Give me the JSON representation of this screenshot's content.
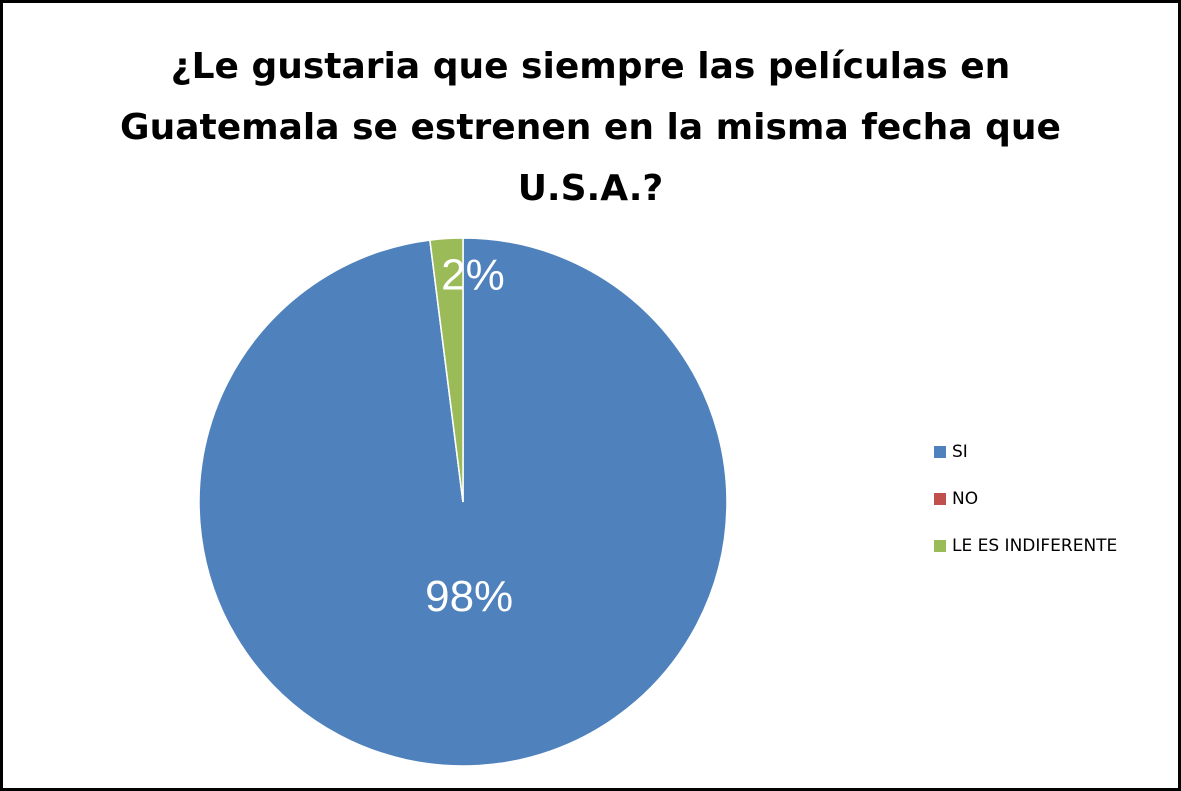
{
  "chart_data": {
    "type": "pie",
    "title": "¿Le gustaria que siempre las películas en\nGuatemala se estrenen en la misma fecha que\nU.S.A.?",
    "categories": [
      "SI",
      "NO",
      "LE ES INDIFERENTE"
    ],
    "values": [
      98,
      0,
      2
    ],
    "value_labels": [
      "98%",
      null,
      "2%"
    ],
    "colors": [
      "#4f81bd",
      "#c0504d",
      "#9bbb59"
    ],
    "legend": "right"
  }
}
